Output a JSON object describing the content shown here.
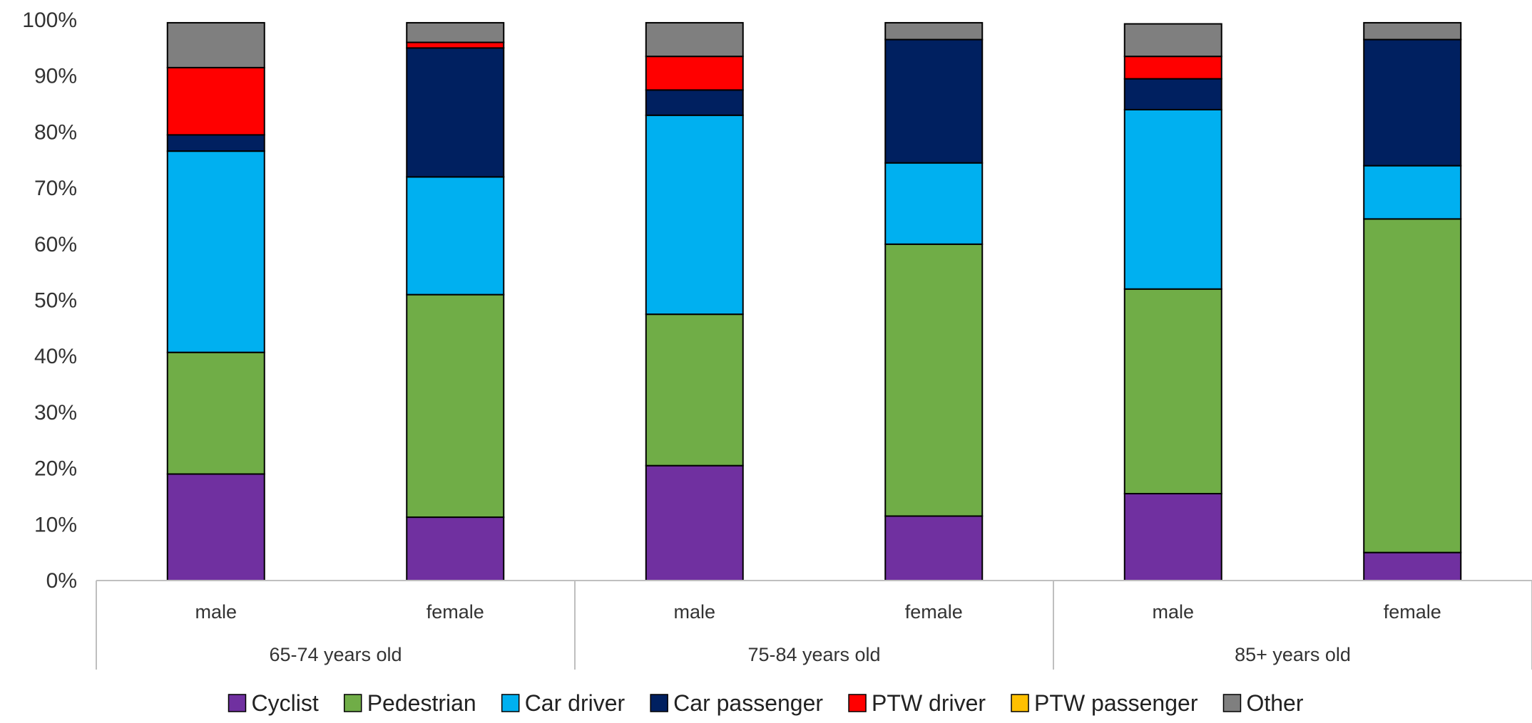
{
  "chart_data": {
    "type": "bar",
    "stacked": true,
    "title": "",
    "xlabel": "",
    "ylabel": "",
    "ylim": [
      0,
      100
    ],
    "y_ticks": [
      "0%",
      "10%",
      "20%",
      "30%",
      "40%",
      "50%",
      "60%",
      "70%",
      "80%",
      "90%",
      "100%"
    ],
    "grid": false,
    "legend_position": "bottom",
    "groups": [
      {
        "label": "65-74 years old",
        "categories": [
          "male",
          "female"
        ]
      },
      {
        "label": "75-84 years old",
        "categories": [
          "male",
          "female"
        ]
      },
      {
        "label": "85+ years old",
        "categories": [
          "male",
          "female"
        ]
      }
    ],
    "series": [
      {
        "name": "Cyclist",
        "color": "#7030A0",
        "values": [
          19.0,
          11.3,
          20.5,
          11.5,
          15.5,
          5.0
        ]
      },
      {
        "name": "Pedestrian",
        "color": "#70AD47",
        "values": [
          21.7,
          39.7,
          27.0,
          48.5,
          36.5,
          59.5
        ]
      },
      {
        "name": "Car driver",
        "color": "#00B0F0",
        "values": [
          35.9,
          21.0,
          35.5,
          14.5,
          32.0,
          9.5
        ]
      },
      {
        "name": "Car passenger",
        "color": "#002060",
        "values": [
          2.9,
          23.0,
          4.5,
          22.0,
          5.5,
          22.5
        ]
      },
      {
        "name": "PTW driver",
        "color": "#FF0000",
        "values": [
          12.0,
          1.0,
          6.0,
          0.0,
          4.0,
          0.0
        ]
      },
      {
        "name": "PTW passenger",
        "color": "#FFC000",
        "values": [
          0.0,
          0.0,
          0.0,
          0.0,
          0.0,
          0.0
        ]
      },
      {
        "name": "Other",
        "color": "#7F7F7F",
        "values": [
          8.0,
          3.5,
          6.0,
          3.0,
          5.8,
          3.0
        ]
      }
    ]
  }
}
